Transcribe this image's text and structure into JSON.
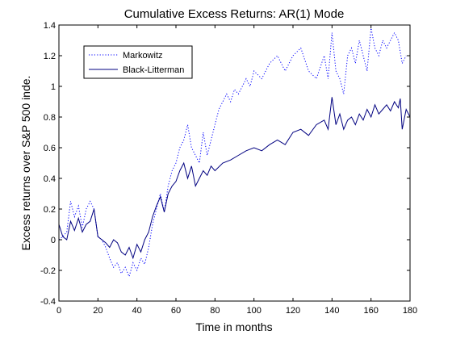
{
  "chart_data": {
    "type": "line",
    "title": "Cumulative Excess Returns: AR(1) Mode",
    "xlabel": "Time in months",
    "ylabel": "Excess returns over S&P 500 inde.",
    "xlim": [
      0,
      180
    ],
    "ylim": [
      -0.4,
      1.4
    ],
    "x_ticks": [
      0,
      20,
      40,
      60,
      80,
      100,
      120,
      140,
      160,
      180
    ],
    "y_ticks": [
      -0.4,
      -0.2,
      0,
      0.2,
      0.4,
      0.6,
      0.8,
      1,
      1.2,
      1.4
    ],
    "x_tick_labels": [
      "0",
      "20",
      "40",
      "60",
      "80",
      "100",
      "120",
      "140",
      "160",
      "180"
    ],
    "y_tick_labels": [
      "-0.4",
      "-0.2",
      "0",
      "0.2",
      "0.4",
      "0.6",
      "0.8",
      "1",
      "1.2",
      "1.4"
    ],
    "grid": false,
    "legend_position": "top-left",
    "series": [
      {
        "name": "Markowitz",
        "color": "#0000ff",
        "style": "dotted",
        "x": [
          0,
          2,
          4,
          6,
          8,
          10,
          12,
          14,
          16,
          18,
          20,
          22,
          24,
          26,
          28,
          30,
          32,
          34,
          36,
          38,
          40,
          42,
          44,
          46,
          48,
          50,
          52,
          54,
          56,
          58,
          60,
          62,
          64,
          66,
          68,
          70,
          72,
          74,
          76,
          78,
          80,
          82,
          84,
          86,
          88,
          90,
          92,
          94,
          96,
          98,
          100,
          104,
          108,
          112,
          116,
          120,
          124,
          128,
          132,
          136,
          138,
          140,
          142,
          144,
          146,
          148,
          150,
          152,
          154,
          156,
          158,
          160,
          162,
          164,
          166,
          168,
          170,
          172,
          174,
          176,
          178
        ],
        "values": [
          0.0,
          0.02,
          0.05,
          0.25,
          0.15,
          0.22,
          0.08,
          0.2,
          0.25,
          0.2,
          0.02,
          0.0,
          -0.05,
          -0.12,
          -0.18,
          -0.15,
          -0.22,
          -0.18,
          -0.24,
          -0.15,
          -0.2,
          -0.12,
          -0.16,
          -0.05,
          0.1,
          0.2,
          0.3,
          0.18,
          0.35,
          0.45,
          0.5,
          0.6,
          0.65,
          0.75,
          0.6,
          0.55,
          0.5,
          0.7,
          0.55,
          0.65,
          0.75,
          0.85,
          0.9,
          0.95,
          0.9,
          0.98,
          0.95,
          1.0,
          1.05,
          1.0,
          1.1,
          1.05,
          1.15,
          1.2,
          1.1,
          1.2,
          1.25,
          1.1,
          1.05,
          1.2,
          1.05,
          1.35,
          1.1,
          1.05,
          0.95,
          1.2,
          1.25,
          1.15,
          1.3,
          1.2,
          1.1,
          1.38,
          1.25,
          1.2,
          1.3,
          1.25,
          1.3,
          1.35,
          1.3,
          1.15,
          1.2
        ]
      },
      {
        "name": "Black-Litterman",
        "color": "#000080",
        "style": "solid",
        "x": [
          0,
          2,
          4,
          6,
          8,
          10,
          12,
          14,
          16,
          18,
          20,
          22,
          24,
          26,
          28,
          30,
          32,
          34,
          36,
          38,
          40,
          42,
          44,
          46,
          48,
          50,
          52,
          54,
          56,
          58,
          60,
          62,
          64,
          66,
          68,
          70,
          72,
          74,
          76,
          78,
          80,
          84,
          88,
          92,
          96,
          100,
          104,
          108,
          112,
          116,
          120,
          124,
          128,
          132,
          136,
          138,
          140,
          142,
          144,
          146,
          148,
          150,
          152,
          154,
          156,
          158,
          160,
          162,
          164,
          166,
          168,
          170,
          172,
          174,
          175,
          176,
          178,
          180
        ],
        "values": [
          0.1,
          0.02,
          0.0,
          0.12,
          0.06,
          0.14,
          0.05,
          0.1,
          0.12,
          0.2,
          0.02,
          0.0,
          -0.02,
          -0.05,
          0.0,
          -0.02,
          -0.08,
          -0.1,
          -0.05,
          -0.12,
          -0.03,
          -0.08,
          0.0,
          0.05,
          0.15,
          0.22,
          0.28,
          0.18,
          0.3,
          0.35,
          0.38,
          0.45,
          0.5,
          0.4,
          0.48,
          0.35,
          0.4,
          0.45,
          0.42,
          0.48,
          0.45,
          0.5,
          0.52,
          0.55,
          0.58,
          0.6,
          0.58,
          0.62,
          0.65,
          0.62,
          0.7,
          0.72,
          0.68,
          0.75,
          0.78,
          0.72,
          0.93,
          0.75,
          0.82,
          0.72,
          0.78,
          0.8,
          0.75,
          0.82,
          0.78,
          0.85,
          0.8,
          0.88,
          0.82,
          0.85,
          0.88,
          0.84,
          0.9,
          0.86,
          0.92,
          0.72,
          0.85,
          0.8
        ]
      }
    ]
  }
}
